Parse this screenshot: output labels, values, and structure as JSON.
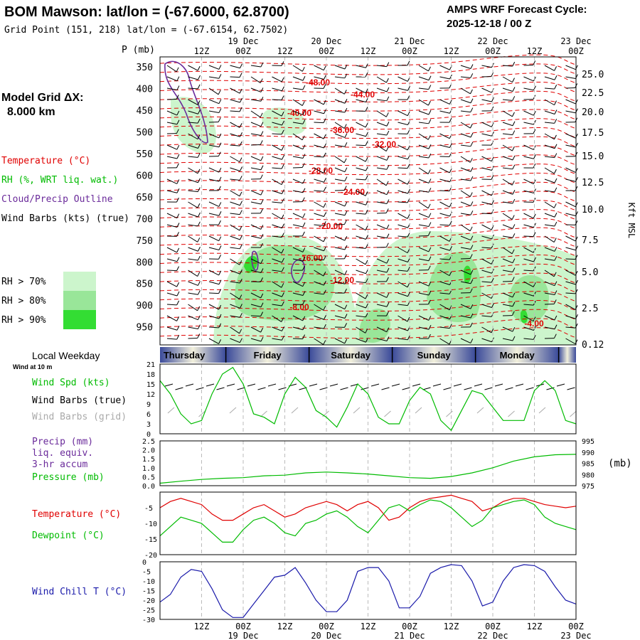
{
  "header": {
    "title": "BOM Mawson:  lat/lon = (-67.6000, 62.8700)",
    "grid_point": "Grid Point (151, 218) lat/lon = (-67.6154, 62.7502)",
    "cycle_label": "AMPS WRF Forecast Cycle:",
    "cycle_value": "2025-12-18 / 00  Z"
  },
  "sidebar": {
    "model_grid_label": "Model Grid ΔX:",
    "model_grid_value": "8.000 km",
    "legend_temperature": "Temperature (°C)",
    "legend_rh": "RH (%, WRT liq. wat.)",
    "legend_cloud": "Cloud/Precip Outline",
    "legend_wind": "Wind Barbs (kts) (true)",
    "rh_levels": [
      "RH > 70%",
      "RH > 80%",
      "RH > 90%"
    ],
    "local_weekday": "Local Weekday",
    "wind_at": "Wind at 10 m",
    "wind_speed": "Wind Spd (kts)",
    "wind_barbs_true": "Wind Barbs (true)",
    "wind_barbs_grid": "Wind Barbs (grid)",
    "precip_1": "Precip (mm)",
    "precip_2": "liq. equiv.",
    "precip_3": "3-hr accum",
    "pressure": "Pressure (mb)",
    "temperature": "Temperature (°C)",
    "dewpoint": "Dewpoint (°C)",
    "wind_chill": "Wind Chill T (°C)"
  },
  "colors": {
    "temperature": "#e00000",
    "dewpoint": "#00bb00",
    "rh70": "#ccf5cc",
    "rh80": "#99e699",
    "rh90": "#33dd33",
    "cloud": "#6a2a9a",
    "wind_chill": "#1a1aaa",
    "grid_barb": "#aaaaaa"
  },
  "chart_data": [
    {
      "type": "cross-section",
      "title": "Upper-air time-height section",
      "x_time_ticks": [
        "12Z",
        "00Z",
        "12Z",
        "00Z",
        "12Z",
        "00Z",
        "12Z",
        "00Z",
        "12Z",
        "00Z"
      ],
      "x_date_ticks": [
        "19 Dec",
        "20 Dec",
        "21 Dec",
        "22 Dec",
        "23 Dec"
      ],
      "ylabel": "P (mb)",
      "pressure_ticks": [
        "350",
        "400",
        "450",
        "500",
        "550",
        "600",
        "650",
        "700",
        "750",
        "800",
        "850",
        "900",
        "950"
      ],
      "height_label": "Kft MSL",
      "height_ticks": [
        "25.0",
        "22.5",
        "20.0",
        "17.5",
        "15.0",
        "12.5",
        "10.0",
        "7.5",
        "5.0",
        "2.5",
        "0.12"
      ],
      "isotherm_labels": [
        "-48.00",
        "-44.00",
        "-40.00",
        "-36.00",
        "-32.00",
        "-28.00",
        "-24.00",
        "-20.00",
        "-16.00",
        "-12.00",
        "-8.00",
        "-4.00"
      ]
    },
    {
      "type": "line",
      "title": "Wind Spd (kts)",
      "weekdays": [
        "Thursday",
        "Friday",
        "Saturday",
        "Sunday",
        "Monday"
      ],
      "yticks": [
        "21",
        "18",
        "15",
        "12",
        "9",
        "6",
        "3",
        "0"
      ],
      "ylim": [
        0,
        21
      ],
      "hours": [
        0,
        3,
        6,
        9,
        12,
        15,
        18,
        21,
        24,
        27,
        30,
        33,
        36,
        39,
        42,
        45,
        48,
        51,
        54,
        57,
        60,
        63,
        66,
        69,
        72,
        75,
        78,
        81,
        84,
        87,
        90,
        93,
        96,
        99,
        102,
        105,
        108,
        111,
        114,
        117,
        120
      ],
      "values": [
        16,
        12,
        6,
        3,
        4,
        12,
        18,
        20,
        15,
        6,
        5,
        3,
        12,
        17,
        14,
        7,
        5,
        2,
        8,
        15,
        12,
        5,
        3,
        3,
        10,
        14,
        12,
        4,
        1,
        7,
        13,
        12,
        8,
        4,
        4,
        4,
        13,
        16,
        13,
        4,
        3
      ]
    },
    {
      "type": "line",
      "title": "Pressure (mb)",
      "y_left_ticks": [
        "2.5",
        "2.0",
        "1.5",
        "1.0",
        "0.5",
        "0.0"
      ],
      "y_right_ticks": [
        "995",
        "990",
        "985",
        "980",
        "975"
      ],
      "ylim": [
        975,
        995
      ],
      "hours": [
        0,
        6,
        12,
        18,
        24,
        30,
        36,
        42,
        48,
        54,
        60,
        66,
        72,
        78,
        84,
        90,
        96,
        102,
        108,
        114,
        120
      ],
      "values": [
        976.1,
        977.0,
        977.8,
        978.3,
        978.6,
        979.4,
        979.7,
        980.7,
        981.1,
        980.7,
        980.2,
        979.4,
        978.6,
        978.3,
        979.1,
        980.7,
        983.0,
        986.0,
        987.9,
        988.8,
        989.0
      ]
    },
    {
      "type": "line",
      "title": "Temperature (°C) / Dewpoint (°C)",
      "yticks": [
        "-5",
        "-10",
        "-15",
        "-20"
      ],
      "ylim": [
        -20,
        0
      ],
      "hours": [
        0,
        3,
        6,
        9,
        12,
        15,
        18,
        21,
        24,
        27,
        30,
        33,
        36,
        39,
        42,
        45,
        48,
        51,
        54,
        57,
        60,
        63,
        66,
        69,
        72,
        75,
        78,
        81,
        84,
        87,
        90,
        93,
        96,
        99,
        102,
        105,
        108,
        111,
        114,
        117,
        120
      ],
      "series": [
        {
          "name": "Temperature",
          "values": [
            -5,
            -3,
            -2,
            -3,
            -4,
            -7,
            -9,
            -9,
            -7,
            -5,
            -4,
            -6,
            -8,
            -7,
            -5,
            -4,
            -3,
            -4,
            -6,
            -4,
            -3,
            -5,
            -9,
            -8,
            -5,
            -3,
            -2,
            -1.5,
            -1,
            -2,
            -3,
            -6,
            -5,
            -3,
            -2,
            -2,
            -3,
            -4,
            -4.5,
            -5,
            -4.5
          ]
        },
        {
          "name": "Dewpoint",
          "values": [
            -14,
            -11,
            -8,
            -9,
            -10,
            -13,
            -16,
            -16,
            -12,
            -9,
            -8,
            -10,
            -13,
            -14,
            -10,
            -9,
            -7,
            -6,
            -8,
            -11,
            -13,
            -9,
            -5,
            -4,
            -6,
            -4,
            -2.5,
            -3,
            -5,
            -8,
            -11,
            -9,
            -5,
            -4,
            -3,
            -2.5,
            -4,
            -8,
            -10,
            -11,
            -12
          ]
        }
      ]
    },
    {
      "type": "line",
      "title": "Wind Chill T (°C)",
      "yticks": [
        "0",
        "-5",
        "-10",
        "-15",
        "-20",
        "-25",
        "-30"
      ],
      "ylim": [
        -30,
        0
      ],
      "hours": [
        0,
        3,
        6,
        9,
        12,
        15,
        18,
        21,
        24,
        27,
        30,
        33,
        36,
        39,
        42,
        45,
        48,
        51,
        54,
        57,
        60,
        63,
        66,
        69,
        72,
        75,
        78,
        81,
        84,
        87,
        90,
        93,
        96,
        99,
        102,
        105,
        108,
        111,
        114,
        117,
        120
      ],
      "values": [
        -21,
        -17,
        -8,
        -4,
        -5,
        -14,
        -25,
        -29,
        -29,
        -22,
        -15,
        -8,
        -7,
        -3,
        -11,
        -20,
        -26,
        -26,
        -20,
        -5,
        -3,
        -3,
        -10,
        -24,
        -24,
        -18,
        -6,
        -3,
        -1.5,
        -2,
        -10,
        -23,
        -21,
        -10,
        -3,
        -1.5,
        -2,
        -5,
        -13,
        -20,
        -22
      ]
    }
  ]
}
